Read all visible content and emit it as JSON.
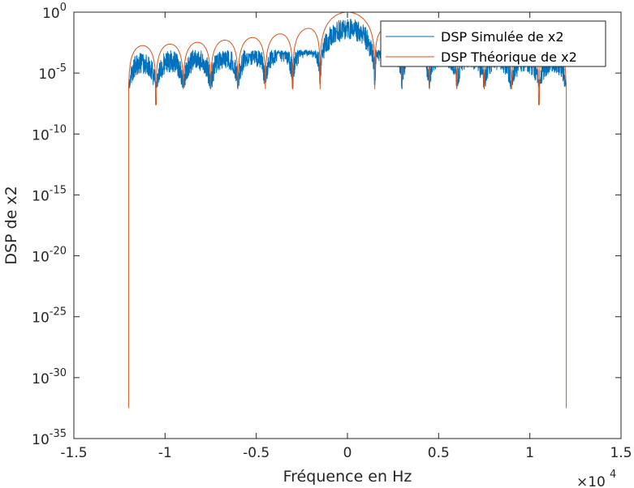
{
  "chart_data": {
    "type": "line",
    "xlabel": "Fréquence en Hz",
    "ylabel": "DSP de x2",
    "x_scale_factor": "×10",
    "x_scale_exponent": "4",
    "xlim": [
      -1.5,
      1.5
    ],
    "ylim_log10": [
      -35,
      0
    ],
    "y_scale": "log",
    "grid": false,
    "legend_position": "top-right",
    "x_ticks": [
      {
        "value": -1.5,
        "label": "-1.5"
      },
      {
        "value": -1,
        "label": "-1"
      },
      {
        "value": -0.5,
        "label": "-0.5"
      },
      {
        "value": 0,
        "label": "0"
      },
      {
        "value": 0.5,
        "label": "0.5"
      },
      {
        "value": 1,
        "label": "1"
      },
      {
        "value": 1.5,
        "label": "1.5"
      }
    ],
    "y_ticks": [
      {
        "value": 0,
        "base": "10",
        "exp": "0"
      },
      {
        "value": -5,
        "base": "10",
        "exp": "-5"
      },
      {
        "value": -10,
        "base": "10",
        "exp": "-10"
      },
      {
        "value": -15,
        "base": "10",
        "exp": "-15"
      },
      {
        "value": -20,
        "base": "10",
        "exp": "-20"
      },
      {
        "value": -25,
        "base": "10",
        "exp": "-25"
      },
      {
        "value": -30,
        "base": "10",
        "exp": "-30"
      },
      {
        "value": -35,
        "base": "10",
        "exp": "-35"
      }
    ],
    "series": [
      {
        "name": "DSP Simulée de x2",
        "color": "#0072BD",
        "x_range": [
          -1.2,
          1.2
        ],
        "main_lobe_zeros": [
          -0.15,
          0.15
        ],
        "sidelobe_zero_spacing": 0.15,
        "sidelobe_peak_log10": -3.5,
        "null_depth_log10": -5.5,
        "main_peak_log10": -0.5
      },
      {
        "name": "DSP Théorique de x2",
        "color": "#D95319",
        "x_range": [
          -1.2,
          1.2
        ],
        "main_lobe_zeros": [
          -0.15,
          0.15
        ],
        "sidelobe_zero_spacing": 0.15,
        "main_peak_log10": 0,
        "edge_value_log10": -32.5,
        "deep_nulls_log10": [
          {
            "x": -1.05,
            "value": -7.6
          },
          {
            "x": 1.05,
            "value": -7.6
          }
        ],
        "null_depth_log10": -6.3
      }
    ]
  }
}
